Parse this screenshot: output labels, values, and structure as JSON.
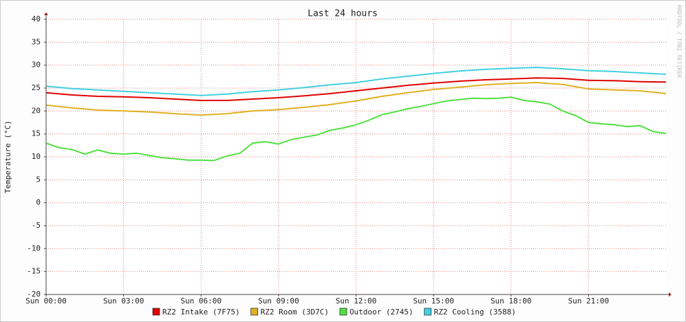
{
  "chart_data": {
    "type": "line",
    "title": "Last 24 hours",
    "y_label": "Temperature (°C)",
    "watermark": "RRDTOOL / TOBI OETIKER",
    "xlim": [
      0,
      24
    ],
    "xticks": [
      {
        "value": 0,
        "label": "Sun 00:00"
      },
      {
        "value": 3,
        "label": "Sun 03:00"
      },
      {
        "value": 6,
        "label": "Sun 06:00"
      },
      {
        "value": 9,
        "label": "Sun 09:00"
      },
      {
        "value": 12,
        "label": "Sun 12:00"
      },
      {
        "value": 15,
        "label": "Sun 15:00"
      },
      {
        "value": 18,
        "label": "Sun 18:00"
      },
      {
        "value": 21,
        "label": "Sun 21:00"
      }
    ],
    "ylim": [
      -20,
      40
    ],
    "yticks": [
      -20,
      -15,
      -10,
      -5,
      0,
      5,
      10,
      15,
      20,
      25,
      30,
      35,
      40
    ],
    "grid": true,
    "series": [
      {
        "name": "RZ2 Intake (7F75)",
        "color": "#e00000",
        "x": [
          0,
          1,
          2,
          3,
          4,
          5,
          6,
          7,
          8,
          9,
          10,
          11,
          12,
          13,
          14,
          15,
          16,
          17,
          18,
          19,
          20,
          21,
          22,
          23,
          24
        ],
        "values": [
          24,
          23.5,
          23.2,
          23.1,
          22.9,
          22.6,
          22.3,
          22.3,
          22.6,
          22.9,
          23.3,
          23.8,
          24.4,
          25,
          25.6,
          26.1,
          26.5,
          26.8,
          27,
          27.2,
          27.1,
          26.7,
          26.6,
          26.4,
          26.3
        ]
      },
      {
        "name": "RZ2 Room (3D7C)",
        "color": "#e0b020",
        "x": [
          0,
          1,
          2,
          3,
          4,
          5,
          6,
          7,
          8,
          9,
          10,
          11,
          12,
          13,
          14,
          15,
          16,
          17,
          18,
          19,
          20,
          21,
          22,
          23,
          24
        ],
        "values": [
          21.3,
          20.7,
          20.2,
          20,
          19.8,
          19.4,
          19.1,
          19.4,
          20,
          20.3,
          20.8,
          21.4,
          22.2,
          23.2,
          24,
          24.7,
          25.2,
          25.7,
          26,
          26.2,
          25.8,
          24.8,
          24.6,
          24.4,
          23.8
        ]
      },
      {
        "name": "Outdoor (2745)",
        "color": "#50e040",
        "x": [
          0,
          0.5,
          1,
          1.5,
          2,
          2.5,
          3,
          3.5,
          4,
          4.5,
          5,
          5.5,
          6,
          6.5,
          7,
          7.5,
          8,
          8.5,
          9,
          9.5,
          10,
          10.5,
          11,
          11.5,
          12,
          12.5,
          13,
          13.5,
          14,
          14.5,
          15,
          15.5,
          16,
          16.5,
          17,
          17.5,
          18,
          18.5,
          19,
          19.5,
          20,
          20.5,
          21,
          21.5,
          22,
          22.5,
          23,
          23.5,
          24
        ],
        "values": [
          13,
          12,
          11.6,
          10.6,
          11.5,
          10.8,
          10.6,
          10.8,
          10.3,
          9.8,
          9.6,
          9.3,
          9.3,
          9.2,
          10.2,
          10.8,
          13,
          13.3,
          12.8,
          13.8,
          14.3,
          14.8,
          15.8,
          16.3,
          17,
          18,
          19.2,
          19.8,
          20.5,
          21,
          21.6,
          22.2,
          22.5,
          22.8,
          22.7,
          22.8,
          23,
          22.3,
          22,
          21.5,
          20,
          19,
          17.5,
          17.2,
          17,
          16.6,
          16.8,
          15.5,
          15.1
        ]
      },
      {
        "name": "RZ2 Cooling (3588)",
        "color": "#40d0e0",
        "x": [
          0,
          1,
          2,
          3,
          4,
          5,
          6,
          7,
          8,
          9,
          10,
          11,
          12,
          13,
          14,
          15,
          16,
          17,
          18,
          19,
          20,
          21,
          22,
          23,
          24
        ],
        "values": [
          25.4,
          24.9,
          24.6,
          24.3,
          24,
          23.7,
          23.4,
          23.7,
          24.2,
          24.6,
          25.1,
          25.7,
          26.2,
          27,
          27.6,
          28.2,
          28.7,
          29.1,
          29.3,
          29.5,
          29.2,
          28.8,
          28.6,
          28.3,
          28
        ]
      }
    ]
  }
}
